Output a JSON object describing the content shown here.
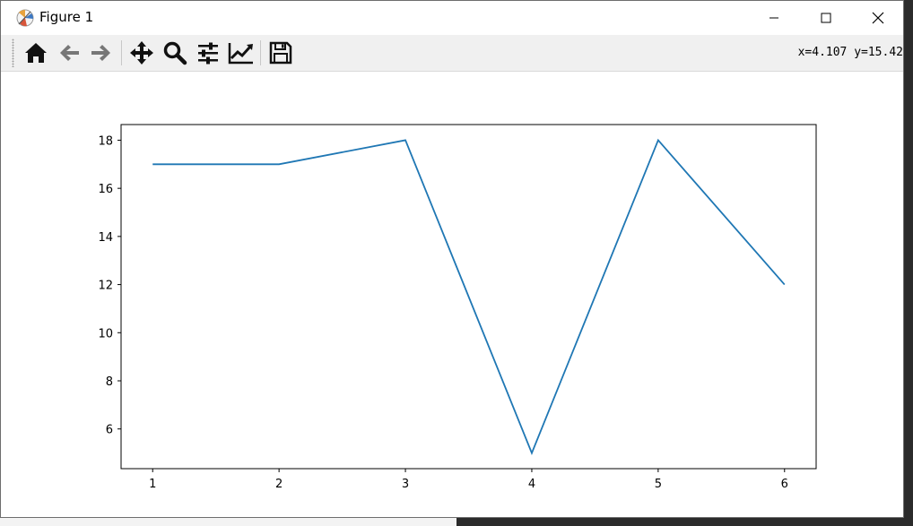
{
  "window": {
    "title": "Figure 1"
  },
  "toolbar": {
    "tools": [
      {
        "name": "home-icon"
      },
      {
        "name": "back-arrow-icon"
      },
      {
        "name": "forward-arrow-icon"
      },
      {
        "name": "pan-icon"
      },
      {
        "name": "zoom-icon"
      },
      {
        "name": "configure-subplots-icon"
      },
      {
        "name": "edit-axis-icon"
      },
      {
        "name": "save-icon"
      }
    ],
    "coordinates": "x=4.107 y=15.42"
  },
  "chart_data": {
    "type": "line",
    "x": [
      1,
      2,
      3,
      4,
      5,
      6
    ],
    "series": [
      {
        "values": [
          17,
          17,
          18,
          5,
          18,
          12
        ],
        "color": "#1f77b4"
      }
    ],
    "xticks": [
      1,
      2,
      3,
      4,
      5,
      6
    ],
    "yticks": [
      6,
      8,
      10,
      12,
      14,
      16,
      18
    ],
    "xlim": [
      0.75,
      6.25
    ],
    "ylim": [
      4.35,
      18.65
    ],
    "grid": false,
    "title": "",
    "xlabel": "",
    "ylabel": ""
  }
}
